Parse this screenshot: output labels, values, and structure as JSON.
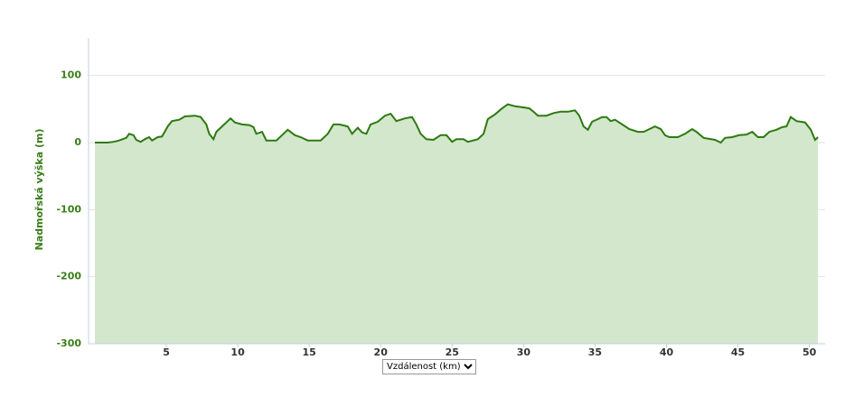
{
  "chart_data": {
    "type": "area",
    "y_label": "Nadmořská výška (m)",
    "x_selector": "Vzdálenost (km)",
    "x": [
      0,
      0.9,
      1.3,
      1.7,
      2.2,
      2.4,
      2.7,
      2.9,
      3.2,
      3.5,
      3.8,
      4.0,
      4.4,
      4.7,
      5.1,
      5.4,
      5.9,
      6.3,
      7.0,
      7.4,
      7.8,
      8.0,
      8.3,
      8.5,
      8.9,
      9.3,
      9.5,
      9.8,
      10.3,
      10.8,
      11.1,
      11.3,
      11.7,
      12.0,
      12.7,
      13.1,
      13.5,
      14.0,
      14.4,
      14.9,
      15.8,
      16.3,
      16.7,
      17.1,
      17.7,
      18.0,
      18.4,
      18.7,
      19.0,
      19.3,
      19.8,
      20.3,
      20.7,
      21.1,
      21.7,
      22.2,
      22.5,
      22.8,
      23.2,
      23.7,
      24.2,
      24.6,
      25.0,
      25.3,
      25.8,
      26.1,
      26.8,
      27.2,
      27.5,
      28.0,
      28.5,
      28.9,
      29.4,
      30.1,
      30.4,
      30.7,
      31.0,
      31.6,
      32.1,
      32.6,
      33.1,
      33.6,
      33.9,
      34.2,
      34.5,
      34.8,
      35.2,
      35.5,
      35.8,
      36.1,
      36.4,
      36.9,
      37.4,
      38.0,
      38.4,
      38.8,
      39.2,
      39.6,
      39.9,
      40.2,
      40.8,
      41.3,
      41.8,
      42.1,
      42.6,
      43.4,
      43.8,
      44.1,
      44.6,
      45.1,
      45.6,
      46.0,
      46.4,
      46.8,
      47.2,
      47.7,
      48.1,
      48.4,
      48.7,
      49.1,
      49.7,
      50.1,
      50.4,
      50.6
    ],
    "values": [
      0,
      0,
      1,
      3,
      7,
      13,
      11,
      4,
      1,
      5,
      8,
      3,
      8,
      9,
      24,
      32,
      34,
      39,
      40,
      38,
      27,
      13,
      5,
      16,
      24,
      32,
      36,
      30,
      27,
      26,
      23,
      13,
      16,
      3,
      3,
      11,
      19,
      11,
      8,
      3,
      3,
      13,
      27,
      27,
      24,
      13,
      22,
      15,
      13,
      27,
      31,
      40,
      43,
      32,
      36,
      38,
      27,
      13,
      5,
      4,
      11,
      11,
      1,
      5,
      5,
      1,
      5,
      13,
      35,
      42,
      51,
      57,
      54,
      52,
      51,
      46,
      40,
      40,
      44,
      46,
      46,
      48,
      40,
      24,
      19,
      31,
      35,
      38,
      38,
      32,
      34,
      27,
      20,
      16,
      16,
      20,
      24,
      20,
      11,
      8,
      8,
      13,
      20,
      16,
      7,
      4,
      0,
      7,
      8,
      11,
      12,
      16,
      8,
      8,
      16,
      19,
      23,
      24,
      38,
      32,
      30,
      19,
      4,
      8
    ],
    "color": "#2d7a10",
    "fill_color": "#d3e7cc",
    "xlim": [
      -0.44,
      51.1
    ],
    "ylim": [
      -300,
      156
    ],
    "xticks": [
      5,
      10,
      15,
      20,
      25,
      30,
      35,
      40,
      45,
      50
    ],
    "yticks": [
      -300,
      -200,
      -100,
      0,
      100
    ],
    "grid": true
  }
}
